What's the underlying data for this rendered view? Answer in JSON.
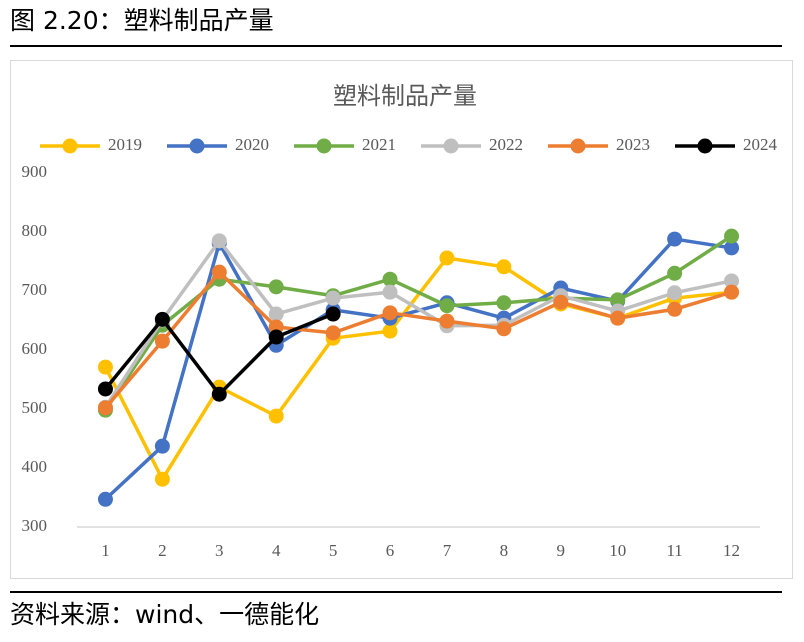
{
  "figure_title": "图 2.20：塑料制品产量",
  "source": "资料来源：wind、一德能化",
  "chart_data": {
    "type": "line",
    "title": "塑料制品产量",
    "categories": [
      "1",
      "2",
      "3",
      "4",
      "5",
      "6",
      "7",
      "8",
      "9",
      "10",
      "11",
      "12"
    ],
    "ylim": [
      300,
      900
    ],
    "yticks": [
      300,
      400,
      500,
      600,
      700,
      800,
      900
    ],
    "legend": "top",
    "series": [
      {
        "name": "2019",
        "color": "#FFC000",
        "values": [
          571,
          381,
          537,
          488,
          620,
          632,
          756,
          741,
          678,
          654,
          688,
          698
        ]
      },
      {
        "name": "2020",
        "color": "#4472C4",
        "values": [
          347,
          437,
          781,
          608,
          668,
          654,
          680,
          654,
          705,
          683,
          788,
          773
        ]
      },
      {
        "name": "2021",
        "color": "#70AD47",
        "values": [
          498,
          642,
          720,
          707,
          692,
          720,
          675,
          680,
          688,
          685,
          730,
          793
        ]
      },
      {
        "name": "2022",
        "color": "#BFBFBF",
        "values": [
          503,
          651,
          785,
          661,
          688,
          698,
          641,
          642,
          692,
          666,
          697,
          717
        ]
      },
      {
        "name": "2023",
        "color": "#ED7D31",
        "values": [
          502,
          615,
          732,
          639,
          629,
          663,
          649,
          636,
          681,
          654,
          669,
          698
        ]
      },
      {
        "name": "2024",
        "color": "#000000",
        "values": [
          534,
          652,
          525,
          622,
          661,
          null,
          null,
          null,
          null,
          null,
          null,
          null
        ]
      }
    ]
  }
}
